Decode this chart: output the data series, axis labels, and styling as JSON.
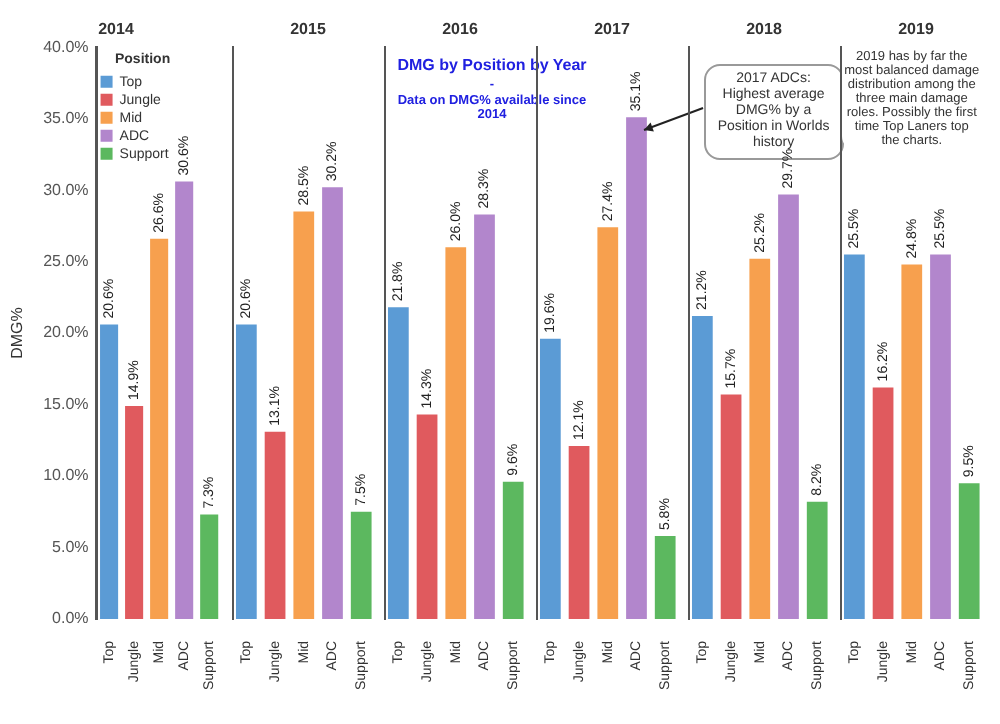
{
  "chart_data": [
    {
      "type": "bar",
      "title": "2014",
      "ylabel": "DMG%",
      "legend": "top left",
      "legend_title": "Position",
      "stacked": true,
      "categories": [
        "Top",
        "Jungle",
        "Mid",
        "ADC",
        "Support"
      ],
      "series": [
        {
          "name": "Top",
          "color": "#5b9bd5",
          "values": [
            20.6,
            null,
            null,
            null,
            null
          ],
          "value_labels": [
            "20.6%",
            null,
            null,
            null,
            null
          ]
        },
        {
          "name": "Jungle",
          "color": "#e05a5e",
          "values": [
            null,
            14.9,
            null,
            null,
            null
          ],
          "value_labels": [
            null,
            "14.9%",
            null,
            null,
            null
          ]
        },
        {
          "name": "Mid",
          "color": "#f7a04e",
          "values": [
            null,
            null,
            26.6,
            null,
            null
          ],
          "value_labels": [
            null,
            null,
            "26.6%",
            null,
            null
          ]
        },
        {
          "name": "ADC",
          "color": "#b286cc",
          "values": [
            null,
            null,
            null,
            30.6,
            null
          ],
          "value_labels": [
            null,
            null,
            null,
            "30.6%",
            null
          ]
        },
        {
          "name": "Support",
          "color": "#5cb85f",
          "values": [
            null,
            null,
            null,
            null,
            7.3
          ],
          "value_labels": [
            null,
            null,
            null,
            null,
            "7.3%"
          ]
        }
      ],
      "ylim": [
        0,
        40
      ],
      "yticks": [
        {
          "value": 0,
          "label": "0.0%"
        },
        {
          "value": 5,
          "label": "5.0%"
        },
        {
          "value": 10,
          "label": "10.0%"
        },
        {
          "value": 15,
          "label": "15.0%"
        },
        {
          "value": 20,
          "label": "20.0%"
        },
        {
          "value": 25,
          "label": "25.0%"
        },
        {
          "value": 30,
          "label": "30.0%"
        },
        {
          "value": 35,
          "label": "35.0%"
        },
        {
          "value": 40,
          "label": "40.0%"
        }
      ],
      "grid": false
    },
    {
      "type": "bar",
      "title": "2015",
      "categories": [
        "Top",
        "Jungle",
        "Mid",
        "ADC",
        "Support"
      ],
      "values": [
        20.6,
        13.1,
        28.5,
        30.2,
        7.5
      ],
      "value_labels": [
        "20.6%",
        "13.1%",
        "28.5%",
        "30.2%",
        "7.5%"
      ],
      "colors": [
        "#5b9bd5",
        "#e05a5e",
        "#f7a04e",
        "#b286cc",
        "#5cb85f"
      ],
      "ylim": [
        0,
        40
      ],
      "tick_labels": "x",
      "grid": false
    },
    {
      "type": "bar",
      "title": "2016",
      "annotations": [
        "DMG by Position by Year",
        "-",
        "Data on DMG% available since 2014"
      ],
      "categories": [
        "Top",
        "Jungle",
        "Mid",
        "ADC",
        "Support"
      ],
      "values": [
        21.8,
        14.3,
        26.0,
        28.3,
        9.6
      ],
      "value_labels": [
        "21.8%",
        "14.3%",
        "26.0%",
        "28.3%",
        "9.6%"
      ],
      "colors": [
        "#5b9bd5",
        "#e05a5e",
        "#f7a04e",
        "#b286cc",
        "#5cb85f"
      ],
      "ylim": [
        0,
        40
      ],
      "tick_labels": "x",
      "grid": false
    },
    {
      "type": "bar",
      "title": "2017",
      "annotations": [
        {
          "text": "2017 ADCs: Highest average DMG% by a Position in Worlds history",
          "x": "ADC",
          "y": 35.1
        }
      ],
      "categories": [
        "Top",
        "Jungle",
        "Mid",
        "ADC",
        "Support"
      ],
      "values": [
        19.6,
        12.1,
        27.4,
        35.1,
        5.8
      ],
      "value_labels": [
        "19.6%",
        "12.1%",
        "27.4%",
        "35.1%",
        "5.8%"
      ],
      "colors": [
        "#5b9bd5",
        "#e05a5e",
        "#f7a04e",
        "#b286cc",
        "#5cb85f"
      ],
      "ylim": [
        0,
        40
      ],
      "tick_labels": "x",
      "grid": false
    },
    {
      "type": "bar",
      "title": "2018",
      "categories": [
        "Top",
        "Jungle",
        "Mid",
        "ADC",
        "Support"
      ],
      "values": [
        21.2,
        15.7,
        25.2,
        29.7,
        8.2
      ],
      "value_labels": [
        "21.2%",
        "15.7%",
        "25.2%",
        "29.7%",
        "8.2%"
      ],
      "colors": [
        "#5b9bd5",
        "#e05a5e",
        "#f7a04e",
        "#b286cc",
        "#5cb85f"
      ],
      "ylim": [
        0,
        40
      ],
      "tick_labels": "x",
      "grid": false
    },
    {
      "type": "bar",
      "title": "2019",
      "annotations": [
        "2019 has by far the most balanced damage distribution among the three main damage roles. Possibly the first time Top Laners top the charts."
      ],
      "categories": [
        "Top",
        "Jungle",
        "Mid",
        "ADC",
        "Support"
      ],
      "values": [
        25.5,
        16.2,
        24.8,
        25.5,
        9.5
      ],
      "value_labels": [
        "25.5%",
        "16.2%",
        "24.8%",
        "25.5%",
        "9.5%"
      ],
      "colors": [
        "#5b9bd5",
        "#e05a5e",
        "#f7a04e",
        "#b286cc",
        "#5cb85f"
      ],
      "ylim": [
        0,
        40
      ],
      "tick_labels": "x",
      "grid": false
    }
  ]
}
